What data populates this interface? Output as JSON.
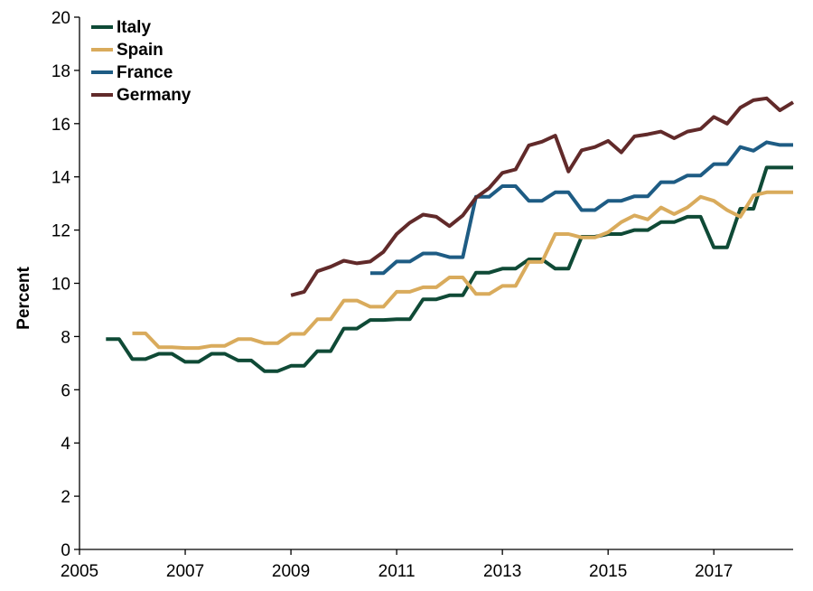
{
  "chart_data": {
    "type": "line",
    "title": "",
    "xlabel": "",
    "ylabel": "Percent",
    "xlim": [
      2005,
      2018.5
    ],
    "ylim": [
      0,
      20
    ],
    "x_ticks": [
      2005,
      2007,
      2009,
      2011,
      2013,
      2015,
      2017
    ],
    "x_tick_labels": [
      "2005",
      "2007",
      "2009",
      "2011",
      "2013",
      "2015",
      "2017"
    ],
    "y_ticks": [
      0,
      2,
      4,
      6,
      8,
      10,
      12,
      14,
      16,
      18,
      20
    ],
    "y_tick_labels": [
      "0",
      "2",
      "4",
      "6",
      "8",
      "10",
      "12",
      "14",
      "16",
      "18",
      "20"
    ],
    "grid": false,
    "legend": {
      "position": "top-left"
    },
    "series": [
      {
        "name": "Italy",
        "color": "#0f4a36",
        "x": [
          2005.5,
          2005.75,
          2006.0,
          2006.25,
          2006.5,
          2006.75,
          2007.0,
          2007.25,
          2007.5,
          2007.75,
          2008.0,
          2008.25,
          2008.5,
          2008.75,
          2009.0,
          2009.25,
          2009.5,
          2009.75,
          2010.0,
          2010.25,
          2010.5,
          2010.75,
          2011.0,
          2011.25,
          2011.5,
          2011.75,
          2012.0,
          2012.25,
          2012.5,
          2012.75,
          2013.0,
          2013.25,
          2013.5,
          2013.75,
          2014.0,
          2014.25,
          2014.5,
          2014.75,
          2015.0,
          2015.25,
          2015.5,
          2015.75,
          2016.0,
          2016.25,
          2016.5,
          2016.75,
          2017.0,
          2017.25,
          2017.5,
          2017.75,
          2018.0,
          2018.25,
          2018.5
        ],
        "values": [
          7.9,
          7.9,
          7.15,
          7.15,
          7.35,
          7.35,
          7.05,
          7.05,
          7.35,
          7.35,
          7.1,
          7.1,
          6.7,
          6.7,
          6.9,
          6.9,
          7.45,
          7.45,
          8.3,
          8.3,
          8.62,
          8.62,
          8.65,
          8.65,
          9.4,
          9.4,
          9.55,
          9.55,
          10.4,
          10.4,
          10.55,
          10.55,
          10.9,
          10.9,
          10.55,
          10.55,
          11.75,
          11.75,
          11.85,
          11.85,
          12.0,
          12.0,
          12.3,
          12.3,
          12.5,
          12.5,
          11.35,
          11.35,
          12.8,
          12.8,
          14.35,
          14.35,
          14.35
        ]
      },
      {
        "name": "Spain",
        "color": "#d9ab5c",
        "x": [
          2006.0,
          2006.25,
          2006.5,
          2006.75,
          2007.0,
          2007.25,
          2007.5,
          2007.75,
          2008.0,
          2008.25,
          2008.5,
          2008.75,
          2009.0,
          2009.25,
          2009.5,
          2009.75,
          2010.0,
          2010.25,
          2010.5,
          2010.75,
          2011.0,
          2011.25,
          2011.5,
          2011.75,
          2012.0,
          2012.25,
          2012.5,
          2012.75,
          2013.0,
          2013.25,
          2013.5,
          2013.75,
          2014.0,
          2014.25,
          2014.5,
          2014.75,
          2015.0,
          2015.25,
          2015.5,
          2015.75,
          2016.0,
          2016.25,
          2016.5,
          2016.75,
          2017.0,
          2017.25,
          2017.5,
          2017.75,
          2018.0,
          2018.25,
          2018.5
        ],
        "values": [
          8.12,
          8.12,
          7.6,
          7.6,
          7.57,
          7.57,
          7.65,
          7.65,
          7.9,
          7.9,
          7.75,
          7.75,
          8.1,
          8.1,
          8.65,
          8.65,
          9.35,
          9.35,
          9.12,
          9.12,
          9.68,
          9.68,
          9.85,
          9.85,
          10.22,
          10.22,
          9.6,
          9.6,
          9.9,
          9.9,
          10.8,
          10.8,
          11.85,
          11.85,
          11.72,
          11.72,
          11.92,
          12.3,
          12.55,
          12.4,
          12.85,
          12.6,
          12.85,
          13.25,
          13.1,
          12.75,
          12.5,
          13.3,
          13.42,
          13.42,
          13.42
        ]
      },
      {
        "name": "France",
        "color": "#1e5c84",
        "x": [
          2010.5,
          2010.75,
          2011.0,
          2011.25,
          2011.5,
          2011.75,
          2012.0,
          2012.25,
          2012.5,
          2012.75,
          2013.0,
          2013.25,
          2013.5,
          2013.75,
          2014.0,
          2014.25,
          2014.5,
          2014.75,
          2015.0,
          2015.25,
          2015.5,
          2015.75,
          2016.0,
          2016.25,
          2016.5,
          2016.75,
          2017.0,
          2017.25,
          2017.5,
          2017.75,
          2018.0,
          2018.25,
          2018.5
        ],
        "values": [
          10.38,
          10.38,
          10.82,
          10.82,
          11.12,
          11.12,
          10.98,
          10.98,
          13.25,
          13.25,
          13.65,
          13.65,
          13.1,
          13.1,
          13.42,
          13.42,
          12.75,
          12.75,
          13.1,
          13.1,
          13.27,
          13.27,
          13.8,
          13.8,
          14.05,
          14.05,
          14.48,
          14.48,
          15.12,
          14.98,
          15.3,
          15.2,
          15.2
        ]
      },
      {
        "name": "Germany",
        "color": "#612a2a",
        "x": [
          2009.0,
          2009.25,
          2009.5,
          2009.75,
          2010.0,
          2010.25,
          2010.5,
          2010.75,
          2011.0,
          2011.25,
          2011.5,
          2011.75,
          2012.0,
          2012.25,
          2012.5,
          2012.75,
          2013.0,
          2013.25,
          2013.5,
          2013.75,
          2014.0,
          2014.25,
          2014.5,
          2014.75,
          2015.0,
          2015.25,
          2015.5,
          2015.75,
          2016.0,
          2016.25,
          2016.5,
          2016.75,
          2017.0,
          2017.25,
          2017.5,
          2017.75,
          2018.0,
          2018.25,
          2018.5
        ],
        "values": [
          9.55,
          9.68,
          10.45,
          10.62,
          10.85,
          10.75,
          10.82,
          11.18,
          11.85,
          12.28,
          12.58,
          12.5,
          12.15,
          12.55,
          13.22,
          13.58,
          14.15,
          14.28,
          15.18,
          15.32,
          15.55,
          14.2,
          15.0,
          15.12,
          15.35,
          14.92,
          15.52,
          15.6,
          15.7,
          15.45,
          15.7,
          15.8,
          16.25,
          16.0,
          16.6,
          16.88,
          16.95,
          16.5,
          16.8
        ]
      }
    ]
  }
}
